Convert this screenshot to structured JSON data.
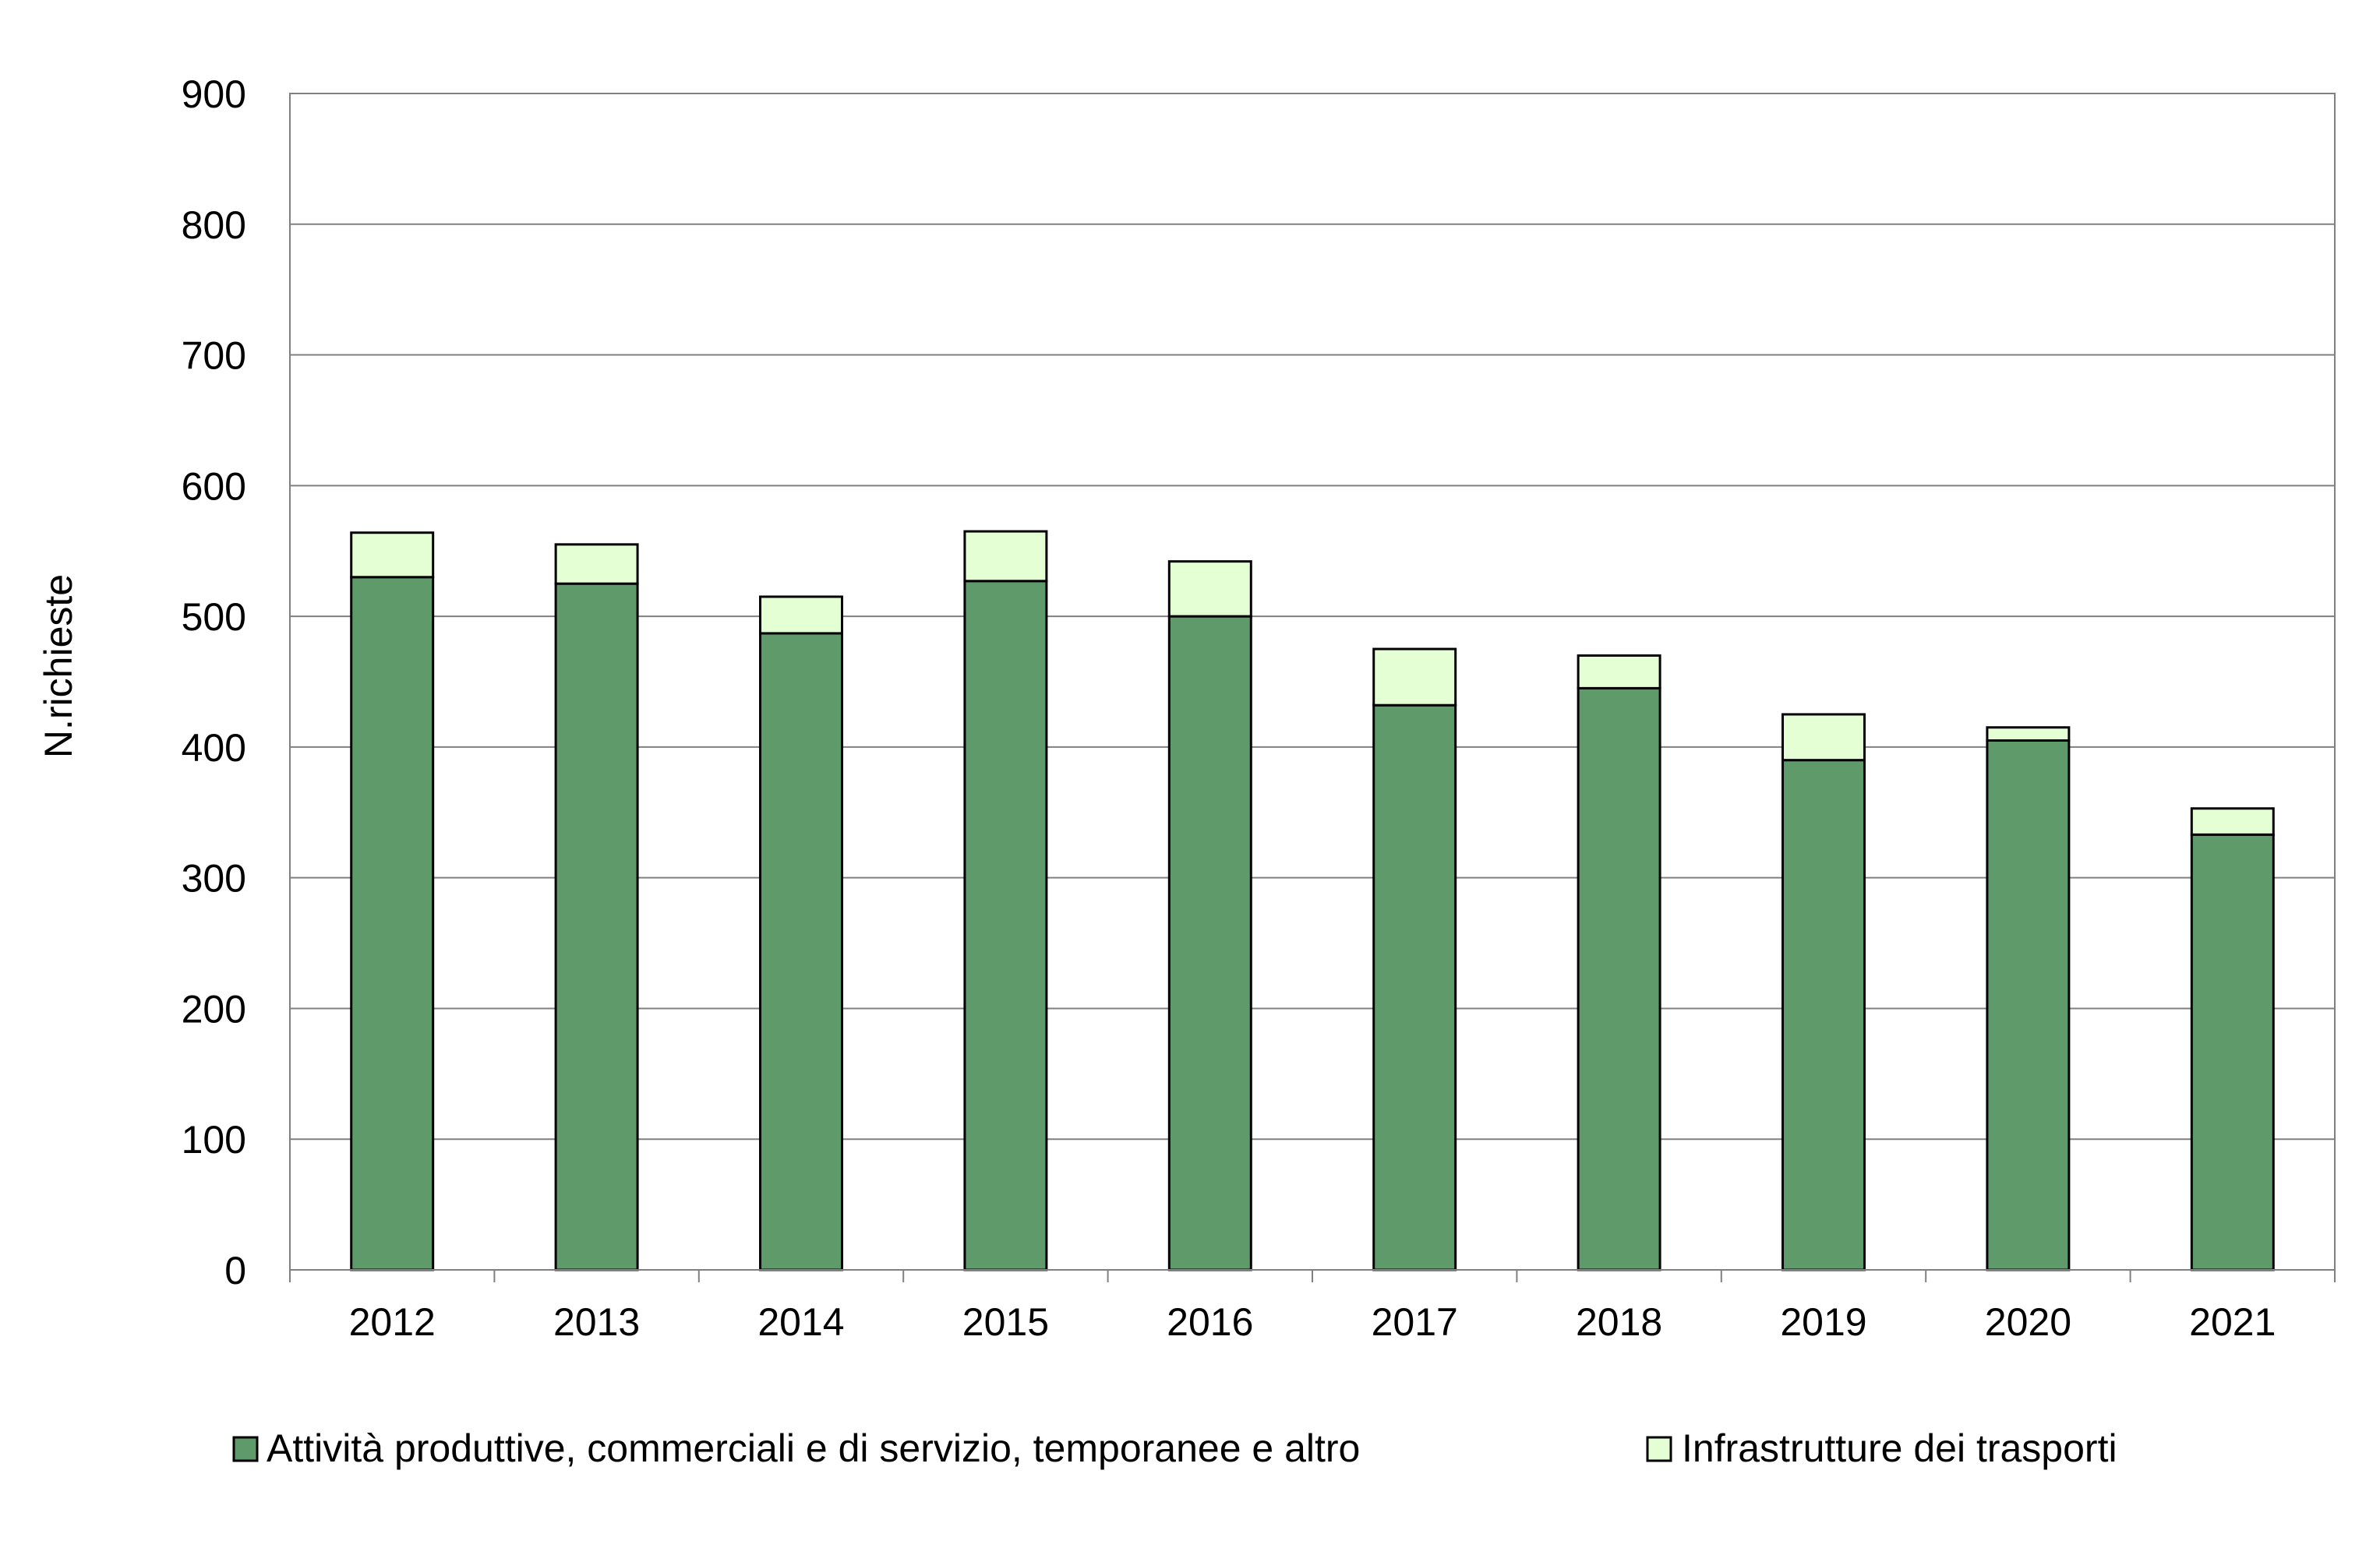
{
  "chart_data": {
    "type": "bar",
    "stacked": true,
    "title": "",
    "xlabel": "",
    "ylabel": "N.richieste",
    "ylim": [
      0,
      900
    ],
    "yticks": [
      "0",
      "100",
      "200",
      "300",
      "400",
      "500",
      "600",
      "700",
      "800",
      "900"
    ],
    "grid": true,
    "legend_position": "bottom",
    "categories": [
      "2012",
      "2013",
      "2014",
      "2015",
      "2016",
      "2017",
      "2018",
      "2019",
      "2020",
      "2021"
    ],
    "series": [
      {
        "name": "Attività produttive, commerciali e di servizio, temporanee e altro",
        "color": "#5e9a6a",
        "values": [
          530,
          525,
          487,
          527,
          500,
          432,
          445,
          390,
          405,
          333
        ]
      },
      {
        "name": "Infrastrutture dei trasporti",
        "color": "#e4ffd4",
        "values": [
          34,
          30,
          28,
          38,
          42,
          43,
          25,
          35,
          10,
          20
        ]
      }
    ]
  }
}
